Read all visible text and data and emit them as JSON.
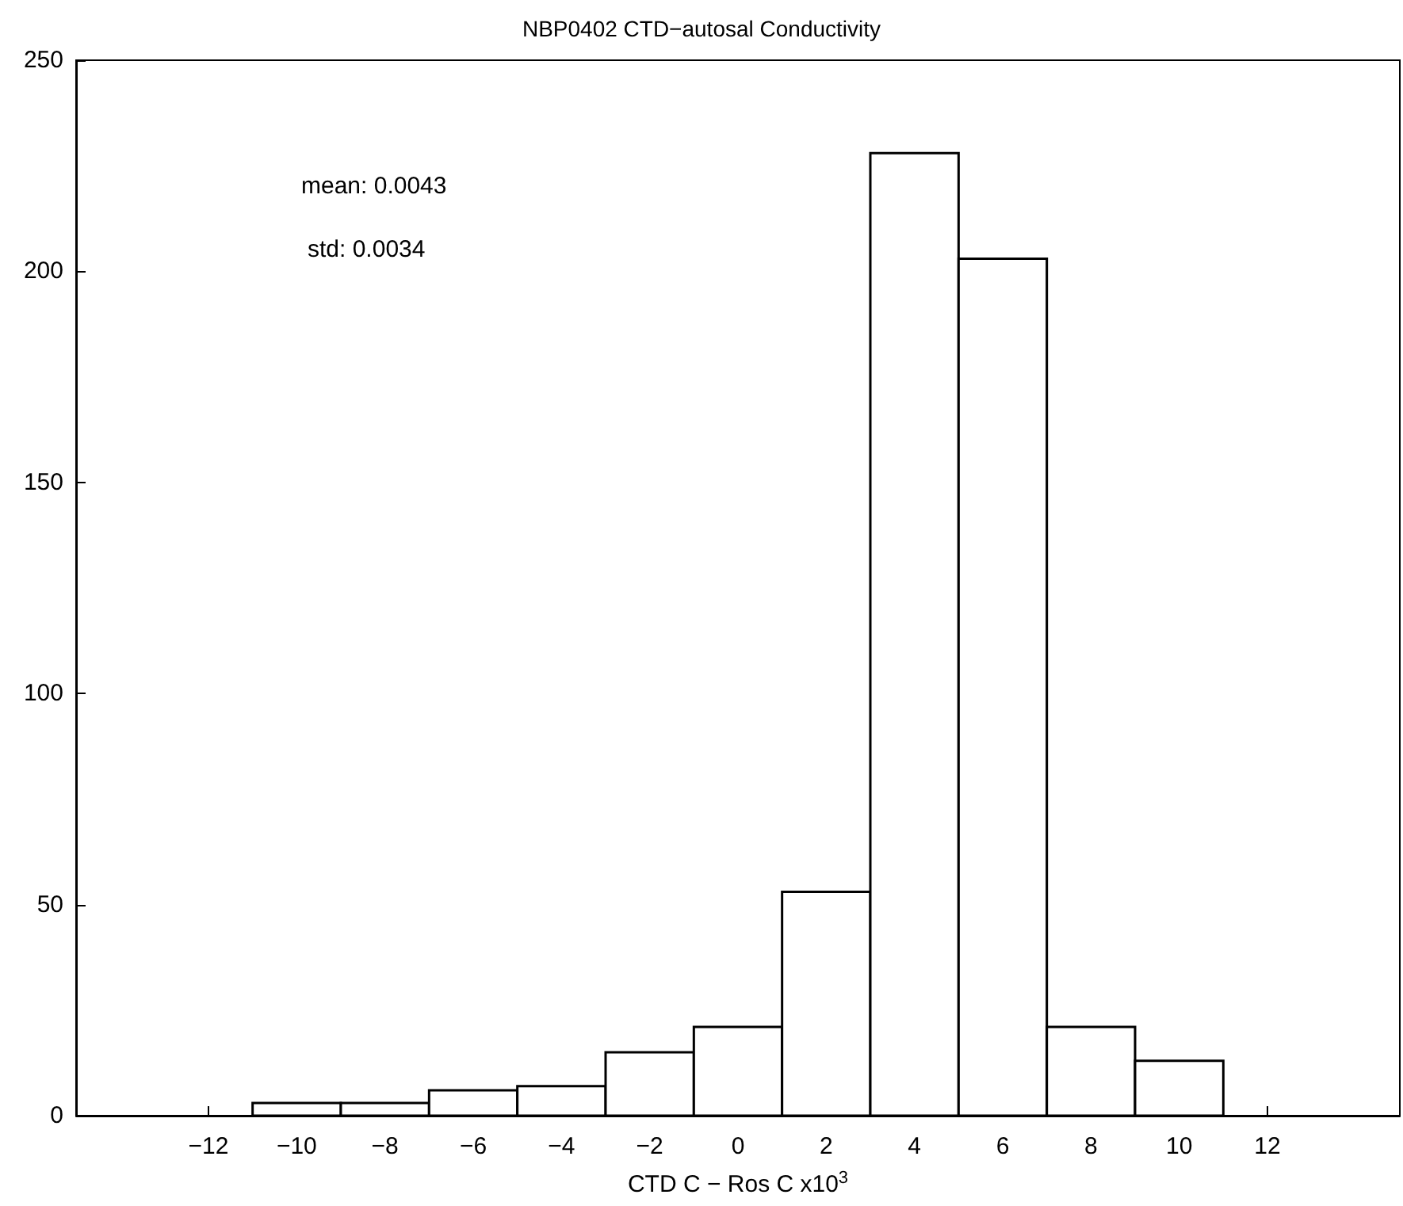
{
  "chart_data": {
    "type": "histogram",
    "title": "NBP0402 CTD−autosal Conductivity",
    "xlabel": "CTD C − Ros C x10$^{3}$",
    "bins": [
      -11,
      -9,
      -7,
      -5,
      -3,
      -1,
      1,
      3,
      5,
      7,
      9,
      11
    ],
    "values": [
      3,
      3,
      6,
      7,
      15,
      21,
      53,
      228,
      203,
      21,
      13
    ],
    "color": "#ffffff",
    "xlim": [
      -15,
      15
    ],
    "xticks": [
      -12,
      -10,
      -8,
      -6,
      -4,
      -2,
      0,
      2,
      4,
      6,
      8,
      10,
      12
    ],
    "ylim": [
      0,
      250
    ],
    "yticks": [
      0,
      50,
      100,
      150,
      200,
      250
    ],
    "grid": false,
    "annotations": [
      "mean: 0.0043",
      "std: 0.0034"
    ]
  }
}
